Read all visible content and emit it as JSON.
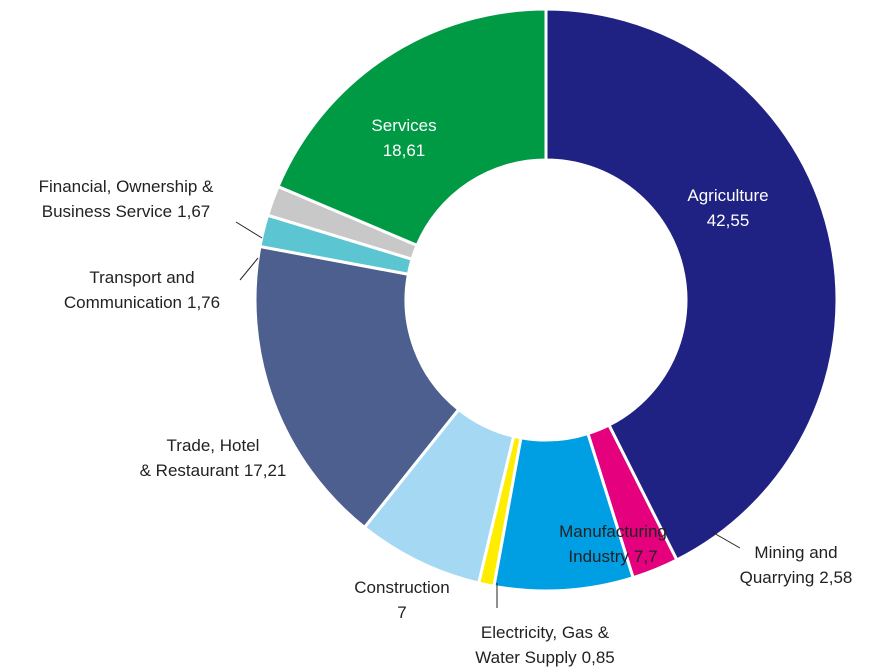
{
  "chart_data": {
    "type": "donut",
    "categories": [
      "Agriculture",
      "Mining and\nQuarrying",
      "Manufacturing\nIndustry",
      "Electricity, Gas &\nWater Supply",
      "Construction",
      "Trade, Hotel\n& Restaurant",
      "Transport and\nCommunication",
      "Financial, Ownership &\nBusiness Service",
      "Services"
    ],
    "values": [
      42.55,
      2.58,
      7.7,
      0.85,
      7,
      17.21,
      1.76,
      1.67,
      18.61
    ],
    "value_labels": [
      "42,55",
      "2,58",
      "7,7",
      "0,85",
      "7",
      "17,21",
      "1,76",
      "1,67",
      "18,61"
    ],
    "colors": [
      "#1f2283",
      "#e5007e",
      "#009fe3",
      "#ffed00",
      "#a5d8f3",
      "#4c5f8e",
      "#5bc5d2",
      "#c8c8c8",
      "#009a44"
    ]
  }
}
